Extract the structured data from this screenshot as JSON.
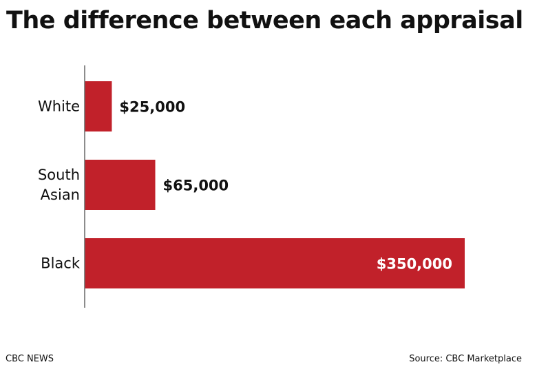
{
  "title": "The difference between each appraisal",
  "footer": {
    "brand": "CBC NEWS",
    "source": "Source: CBC Marketplace"
  },
  "colors": {
    "bar": "#c1212a",
    "axis": "#666666",
    "text": "#111111",
    "inside_label": "#ffffff"
  },
  "chart_data": {
    "type": "bar",
    "orientation": "horizontal",
    "categories": [
      [
        "White"
      ],
      [
        "South",
        "Asian"
      ],
      [
        "Black"
      ]
    ],
    "values": [
      25000,
      65000,
      350000
    ],
    "value_labels": [
      "$25,000",
      "$65,000",
      "$350,000"
    ],
    "title": "The difference between each appraisal",
    "xlabel": "",
    "ylabel": "",
    "xlim": [
      0,
      350000
    ],
    "grid": false,
    "legend": "none"
  }
}
